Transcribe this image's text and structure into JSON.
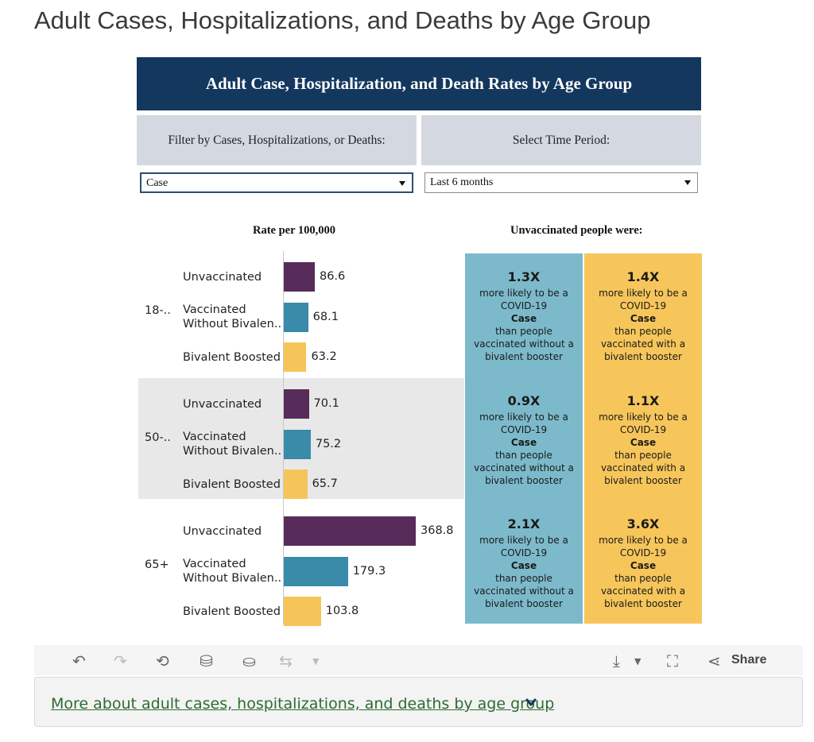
{
  "page": {
    "title": "Adult Cases, Hospitalizations, and Deaths by Age Group"
  },
  "dashboard": {
    "header": "Adult Case, Hospitalization, and Death Rates by Age Group",
    "filter_label": "Filter by Cases, Hospitalizations, or Deaths:",
    "time_label": "Select Time Period:",
    "filter_value": "Case",
    "time_value": "Last 6 months",
    "rate_header": "Rate per 100,000",
    "compare_header": "Unvaccinated people were:"
  },
  "colors": {
    "unvaccinated": "#582c5a",
    "vaccinated": "#3a8aa9",
    "bivalent": "#f6c559",
    "header_bg": "#14375e",
    "compare_blue": "#7cbacb",
    "compare_yellow": "#f7c65b",
    "link": "#2e6b32"
  },
  "chart_data": {
    "type": "bar",
    "title": "Rate per 100,000",
    "orientation": "horizontal",
    "groups": [
      "18-..",
      "50-..",
      "65+"
    ],
    "categories": [
      "Unvaccinated",
      "Vaccinated Without Bivalen..",
      "Bivalent Boosted"
    ],
    "category_lines": [
      [
        "Unvaccinated"
      ],
      [
        "Vaccinated",
        "Without Bivalen.."
      ],
      [
        "Bivalent Boosted"
      ]
    ],
    "series": [
      {
        "name": "Unvaccinated",
        "values": [
          86.6,
          70.1,
          368.8
        ]
      },
      {
        "name": "Vaccinated Without Bivalen..",
        "values": [
          68.1,
          75.2,
          179.3
        ]
      },
      {
        "name": "Bivalent Boosted",
        "values": [
          63.2,
          65.7,
          103.8
        ]
      }
    ],
    "labels": [
      [
        "86.6",
        "68.1",
        "63.2"
      ],
      [
        "70.1",
        "75.2",
        "65.7"
      ],
      [
        "368.8",
        "179.3",
        "103.8"
      ]
    ],
    "xlim": [
      0,
      370
    ]
  },
  "comparison": {
    "columns": [
      "than people vaccinated without a bivalent booster",
      "than people vaccinated with a bivalent booster"
    ],
    "line1": "more likely to be a",
    "line2": "COVID-19",
    "kind": "Case",
    "line3": "than people",
    "without_l1": "vaccinated without a",
    "without_l2": "bivalent booster",
    "with_l1": "vaccinated with a",
    "with_l2": "bivalent booster",
    "rows": [
      {
        "without": "1.3X",
        "with": "1.4X"
      },
      {
        "without": "0.9X",
        "with": "1.1X"
      },
      {
        "without": "2.1X",
        "with": "3.6X"
      }
    ]
  },
  "toolbar": {
    "undo_icon": "undo-icon",
    "redo_icon": "redo-icon",
    "revert_icon": "revert-icon",
    "refresh_icon": "refresh-data-icon",
    "pause_icon": "pause-data-icon",
    "share_label": "Share"
  },
  "footer": {
    "more_link": "More about adult cases, hospitalizations, and deaths by age group"
  }
}
